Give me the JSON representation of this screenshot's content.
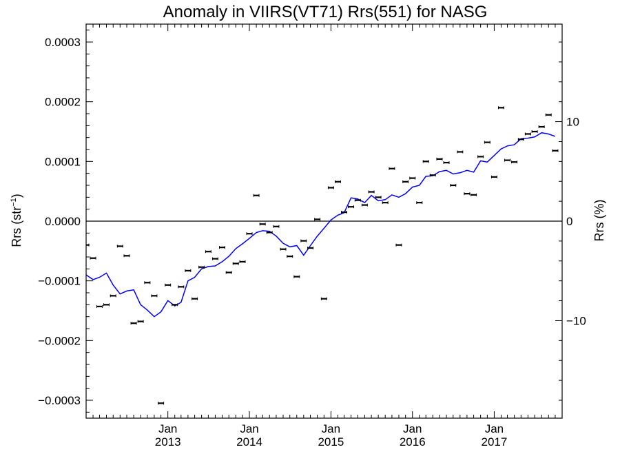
{
  "chart_data": {
    "type": "scatter",
    "title": "Anomaly in VIIRS(VT71) Rrs(551) for NASG",
    "ylabel": "Rrs (str^-1)",
    "ylabel_main": "Rrs (str",
    "ylabel_sup": "−1",
    "ylabel_close": ")",
    "y2label": "Rrs (%)",
    "xlabel": "",
    "xlim": [
      "2012-01-01",
      "2017-11-01"
    ],
    "ylim": [
      -0.00033,
      0.00033
    ],
    "y2lim": [
      -19.8,
      19.8
    ],
    "y_ticks": [
      {
        "value": 0.0003,
        "label": "0.0003"
      },
      {
        "value": 0.0002,
        "label": "0.0002"
      },
      {
        "value": 0.0001,
        "label": "0.0001"
      },
      {
        "value": 0.0,
        "label": "0.0000"
      },
      {
        "value": -0.0001,
        "label": "−0.0001"
      },
      {
        "value": -0.0002,
        "label": "−0.0002"
      },
      {
        "value": -0.0003,
        "label": "−0.0003"
      }
    ],
    "y2_ticks": [
      {
        "value": 10,
        "label": "10"
      },
      {
        "value": 0,
        "label": "0"
      },
      {
        "value": -10,
        "label": "−10"
      }
    ],
    "x_ticks": [
      {
        "date": "2013-01-01",
        "month": "Jan",
        "year": "2013"
      },
      {
        "date": "2014-01-01",
        "month": "Jan",
        "year": "2014"
      },
      {
        "date": "2015-01-01",
        "month": "Jan",
        "year": "2015"
      },
      {
        "date": "2016-01-01",
        "month": "Jan",
        "year": "2016"
      },
      {
        "date": "2017-01-01",
        "month": "Jan",
        "year": "2017"
      }
    ],
    "zero_line": 0,
    "series": [
      {
        "kind": "points-with-error-bars",
        "color": "#000000",
        "points": [
          [
            "2012-01-01",
            -4e-05
          ],
          [
            "2012-02-01",
            -6.2e-05
          ],
          [
            "2012-03-01",
            -0.000143
          ],
          [
            "2012-04-01",
            -0.00014
          ],
          [
            "2012-05-01",
            -0.000125
          ],
          [
            "2012-06-01",
            -4.2e-05
          ],
          [
            "2012-07-01",
            -5.8e-05
          ],
          [
            "2012-08-01",
            -0.000171
          ],
          [
            "2012-09-01",
            -0.000168
          ],
          [
            "2012-10-01",
            -0.000103
          ],
          [
            "2012-11-01",
            -0.000125
          ],
          [
            "2012-12-01",
            -0.000305
          ],
          [
            "2013-01-01",
            -0.000107
          ],
          [
            "2013-02-01",
            -0.00014
          ],
          [
            "2013-03-01",
            -0.00011
          ],
          [
            "2013-04-01",
            -8.3e-05
          ],
          [
            "2013-05-01",
            -0.00013
          ],
          [
            "2013-06-01",
            -7.7e-05
          ],
          [
            "2013-07-01",
            -5.1e-05
          ],
          [
            "2013-08-01",
            -6.3e-05
          ],
          [
            "2013-09-01",
            -4.4e-05
          ],
          [
            "2013-10-01",
            -8.6e-05
          ],
          [
            "2013-11-01",
            -7.1e-05
          ],
          [
            "2013-12-01",
            -6.8e-05
          ],
          [
            "2014-01-01",
            -2.1e-05
          ],
          [
            "2014-02-01",
            4.3e-05
          ],
          [
            "2014-03-01",
            -5e-06
          ],
          [
            "2014-04-01",
            -1.9e-05
          ],
          [
            "2014-05-01",
            -9e-06
          ],
          [
            "2014-06-01",
            -4.7e-05
          ],
          [
            "2014-07-01",
            -5.9e-05
          ],
          [
            "2014-08-01",
            -9.3e-05
          ],
          [
            "2014-09-01",
            -3.3e-05
          ],
          [
            "2014-10-01",
            -4.5e-05
          ],
          [
            "2014-11-01",
            3e-06
          ],
          [
            "2014-12-01",
            -0.00013
          ],
          [
            "2015-01-01",
            5.6e-05
          ],
          [
            "2015-02-01",
            6.6e-05
          ],
          [
            "2015-03-01",
            1.5e-05
          ],
          [
            "2015-04-01",
            2.4e-05
          ],
          [
            "2015-05-01",
            3.5e-05
          ],
          [
            "2015-06-01",
            2.7e-05
          ],
          [
            "2015-07-01",
            4.9e-05
          ],
          [
            "2015-08-01",
            4e-05
          ],
          [
            "2015-09-01",
            3.1e-05
          ],
          [
            "2015-10-01",
            8.8e-05
          ],
          [
            "2015-11-01",
            -4e-05
          ],
          [
            "2015-12-01",
            6.6e-05
          ],
          [
            "2016-01-01",
            7.2e-05
          ],
          [
            "2016-02-01",
            3.1e-05
          ],
          [
            "2016-03-01",
            0.0001
          ],
          [
            "2016-04-01",
            7.7e-05
          ],
          [
            "2016-05-01",
            0.000104
          ],
          [
            "2016-06-01",
            9.8e-05
          ],
          [
            "2016-07-01",
            6e-05
          ],
          [
            "2016-08-01",
            0.000116
          ],
          [
            "2016-09-01",
            4.6e-05
          ],
          [
            "2016-10-01",
            4.4e-05
          ],
          [
            "2016-11-01",
            0.000108
          ],
          [
            "2016-12-01",
            0.000132
          ],
          [
            "2017-01-01",
            7.4e-05
          ],
          [
            "2017-02-01",
            0.00019
          ],
          [
            "2017-03-01",
            0.000102
          ],
          [
            "2017-04-01",
            9.9e-05
          ],
          [
            "2017-05-01",
            0.000137
          ],
          [
            "2017-06-01",
            0.000146
          ],
          [
            "2017-07-01",
            0.00015
          ],
          [
            "2017-08-01",
            0.000158
          ],
          [
            "2017-09-01",
            0.000178
          ],
          [
            "2017-10-01",
            0.000118
          ]
        ]
      },
      {
        "kind": "line",
        "color": "#0000ff",
        "points": [
          [
            "2012-01-01",
            -9e-05
          ],
          [
            "2012-02-01",
            -9.8e-05
          ],
          [
            "2012-03-01",
            -9.4e-05
          ],
          [
            "2012-04-01",
            -8.7e-05
          ],
          [
            "2012-05-01",
            -0.000107
          ],
          [
            "2012-06-01",
            -0.000122
          ],
          [
            "2012-07-01",
            -0.000117
          ],
          [
            "2012-08-01",
            -0.000115
          ],
          [
            "2012-09-01",
            -0.00014
          ],
          [
            "2012-10-01",
            -0.000149
          ],
          [
            "2012-11-01",
            -0.00016
          ],
          [
            "2012-12-01",
            -0.000152
          ],
          [
            "2013-01-01",
            -0.000133
          ],
          [
            "2013-02-01",
            -0.000142
          ],
          [
            "2013-03-01",
            -0.000136
          ],
          [
            "2013-04-01",
            -0.0001
          ],
          [
            "2013-05-01",
            -9.4e-05
          ],
          [
            "2013-06-01",
            -8e-05
          ],
          [
            "2013-07-01",
            -7.6e-05
          ],
          [
            "2013-08-01",
            -7.5e-05
          ],
          [
            "2013-09-01",
            -6.8e-05
          ],
          [
            "2013-10-01",
            -5.9e-05
          ],
          [
            "2013-11-01",
            -4.6e-05
          ],
          [
            "2013-12-01",
            -3.8e-05
          ],
          [
            "2014-01-01",
            -2.9e-05
          ],
          [
            "2014-02-01",
            -1.9e-05
          ],
          [
            "2014-03-01",
            -1.6e-05
          ],
          [
            "2014-04-01",
            -1.7e-05
          ],
          [
            "2014-05-01",
            -2.5e-05
          ],
          [
            "2014-06-01",
            -3.7e-05
          ],
          [
            "2014-07-01",
            -4.3e-05
          ],
          [
            "2014-08-01",
            -4.1e-05
          ],
          [
            "2014-09-01",
            -5.7e-05
          ],
          [
            "2014-10-01",
            -4.1e-05
          ],
          [
            "2014-11-01",
            -2.5e-05
          ],
          [
            "2014-12-01",
            -1.2e-05
          ],
          [
            "2015-01-01",
            2e-06
          ],
          [
            "2015-02-01",
            1e-05
          ],
          [
            "2015-03-01",
            1.4e-05
          ],
          [
            "2015-04-01",
            3.9e-05
          ],
          [
            "2015-05-01",
            3.7e-05
          ],
          [
            "2015-06-01",
            3.1e-05
          ],
          [
            "2015-07-01",
            4.3e-05
          ],
          [
            "2015-08-01",
            3.4e-05
          ],
          [
            "2015-09-01",
            3.6e-05
          ],
          [
            "2015-10-01",
            4.4e-05
          ],
          [
            "2015-11-01",
            4e-05
          ],
          [
            "2015-12-01",
            4.6e-05
          ],
          [
            "2016-01-01",
            5.7e-05
          ],
          [
            "2016-02-01",
            6e-05
          ],
          [
            "2016-03-01",
            7.5e-05
          ],
          [
            "2016-04-01",
            7.6e-05
          ],
          [
            "2016-05-01",
            8.3e-05
          ],
          [
            "2016-06-01",
            8.5e-05
          ],
          [
            "2016-07-01",
            7.9e-05
          ],
          [
            "2016-08-01",
            8.1e-05
          ],
          [
            "2016-09-01",
            8.5e-05
          ],
          [
            "2016-10-01",
            8.2e-05
          ],
          [
            "2016-11-01",
            0.000101
          ],
          [
            "2016-12-01",
            9.9e-05
          ],
          [
            "2017-01-01",
            0.00011
          ],
          [
            "2017-02-01",
            0.000121
          ],
          [
            "2017-03-01",
            0.000126
          ],
          [
            "2017-04-01",
            0.000128
          ],
          [
            "2017-05-01",
            0.000138
          ],
          [
            "2017-06-01",
            0.000139
          ],
          [
            "2017-07-01",
            0.000141
          ],
          [
            "2017-08-01",
            0.000148
          ],
          [
            "2017-09-01",
            0.000146
          ],
          [
            "2017-10-01",
            0.000142
          ]
        ]
      }
    ]
  }
}
